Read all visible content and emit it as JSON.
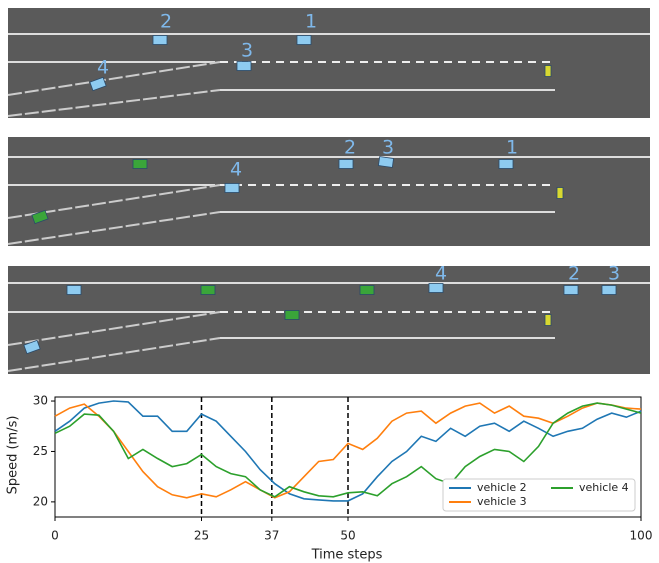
{
  "scenes": [
    {
      "labels": [
        "2",
        "1",
        "3",
        "4"
      ]
    },
    {
      "labels": [
        "2",
        "3",
        "1",
        "4"
      ]
    },
    {
      "labels": [
        "4",
        "2",
        "3"
      ]
    }
  ],
  "chart_data": {
    "type": "line",
    "x": [
      0,
      2.5,
      5,
      7.5,
      10,
      12.5,
      15,
      17.5,
      20,
      22.5,
      25,
      27.5,
      30,
      32.5,
      35,
      37.5,
      40,
      42.5,
      45,
      47.5,
      50,
      52.5,
      55,
      57.5,
      60,
      62.5,
      65,
      67.5,
      70,
      72.5,
      75,
      77.5,
      80,
      82.5,
      85,
      87.5,
      90,
      92.5,
      95,
      97.5,
      100
    ],
    "series": [
      {
        "name": "vehicle 2",
        "color": "#1f77b4",
        "values": [
          27,
          28,
          29.3,
          29.8,
          30,
          29.9,
          28.5,
          28.5,
          27,
          27,
          28.7,
          28,
          26.5,
          25,
          23.2,
          21.8,
          20.8,
          20.3,
          20.2,
          20.1,
          20.1,
          20.8,
          22.5,
          24,
          25,
          26.5,
          26,
          27.3,
          26.5,
          27.5,
          27.8,
          27,
          28,
          27.3,
          26.5,
          27,
          27.3,
          28.2,
          28.8,
          28.4,
          29
        ]
      },
      {
        "name": "vehicle 3",
        "color": "#ff7f0e",
        "values": [
          28.5,
          29.3,
          29.7,
          28.5,
          27,
          25,
          23,
          21.5,
          20.7,
          20.4,
          20.8,
          20.5,
          21.2,
          22,
          21.2,
          20.4,
          21,
          22.5,
          24,
          24.2,
          25.8,
          25.2,
          26.3,
          28,
          28.8,
          29,
          27.8,
          28.8,
          29.5,
          29.8,
          28.8,
          29.5,
          28.5,
          28.3,
          27.8,
          28.5,
          29.3,
          29.8,
          29.6,
          29.3,
          29.2
        ]
      },
      {
        "name": "vehicle 4",
        "color": "#2ca02c",
        "values": [
          26.8,
          27.5,
          28.7,
          28.6,
          27,
          24.3,
          25.2,
          24.3,
          23.5,
          23.8,
          24.7,
          23.5,
          22.8,
          22.5,
          21.2,
          20.5,
          21.5,
          21,
          20.6,
          20.5,
          20.9,
          21,
          20.6,
          21.8,
          22.5,
          23.5,
          22.3,
          21.8,
          23.5,
          24.5,
          25.2,
          25,
          24,
          25.5,
          27.8,
          28.8,
          29.5,
          29.8,
          29.6,
          29.2,
          28.8
        ]
      }
    ],
    "xlim": [
      0,
      100
    ],
    "xticks": [
      0,
      25,
      37,
      50,
      100
    ],
    "ylim": [
      18.5,
      30.4
    ],
    "yticks": [
      20,
      25,
      30
    ],
    "vlines": [
      25,
      37,
      50
    ],
    "xlabel": "Time steps",
    "ylabel": "Speed (m/s)",
    "legend": "lower right"
  }
}
